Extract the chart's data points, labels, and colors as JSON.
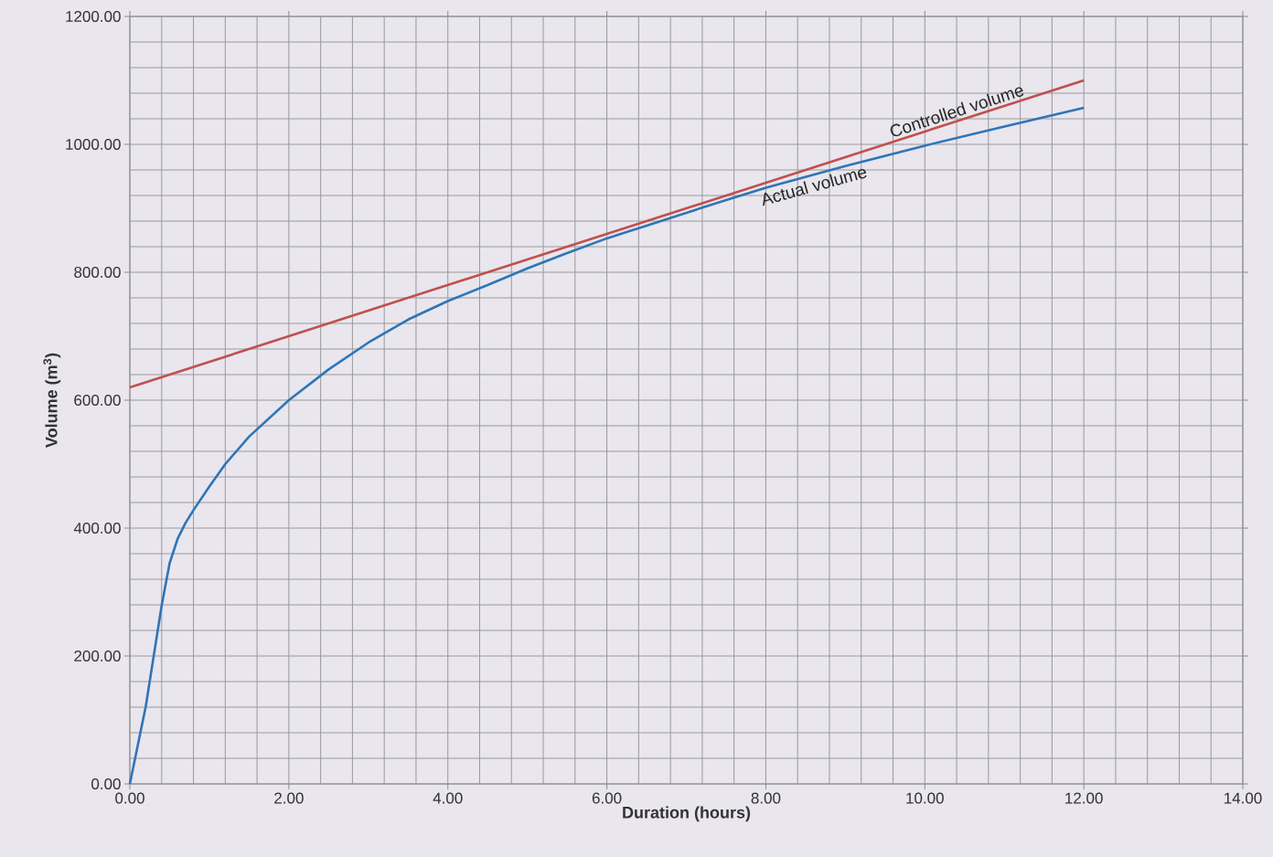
{
  "chart_data": {
    "type": "line",
    "xlabel": "Duration (hours)",
    "ylabel": "Volume (m$^{3}$)",
    "xlim": [
      0,
      14
    ],
    "ylim": [
      0,
      1200
    ],
    "xticks": [
      {
        "value": 0,
        "label": "0.00"
      },
      {
        "value": 2,
        "label": "2.00"
      },
      {
        "value": 4,
        "label": "4.00"
      },
      {
        "value": 6,
        "label": "6.00"
      },
      {
        "value": 8,
        "label": "8.00"
      },
      {
        "value": 10,
        "label": "10.00"
      },
      {
        "value": 12,
        "label": "12.00"
      },
      {
        "value": 14,
        "label": "14.00"
      }
    ],
    "yticks": [
      {
        "value": 0,
        "label": "0.00"
      },
      {
        "value": 200,
        "label": "200.00"
      },
      {
        "value": 400,
        "label": "400.00"
      },
      {
        "value": 600,
        "label": "600.00"
      },
      {
        "value": 800,
        "label": "800.00"
      },
      {
        "value": 1000,
        "label": "1000.00"
      },
      {
        "value": 1200,
        "label": "1200.00"
      }
    ],
    "grid": true,
    "series": [
      {
        "name": "Controlled volume",
        "color": "#c0504d",
        "x": [
          0,
          12
        ],
        "values": [
          620,
          1100
        ]
      },
      {
        "name": "Actual volume",
        "color": "#2e75b6",
        "x": [
          0,
          0.2,
          0.4,
          0.5,
          0.6,
          0.7,
          0.8,
          1.0,
          1.2,
          1.5,
          2,
          2.5,
          3,
          3.5,
          4,
          4.5,
          5,
          5.5,
          6,
          6.5,
          7,
          7.5,
          8,
          9,
          10,
          11,
          12
        ],
        "values": [
          0,
          121,
          279,
          345,
          383,
          408,
          428,
          465,
          500,
          543,
          600,
          648,
          690,
          726,
          755,
          780,
          806,
          830,
          853,
          873,
          893,
          913,
          932,
          966,
          998,
          1028,
          1057
        ]
      }
    ]
  }
}
